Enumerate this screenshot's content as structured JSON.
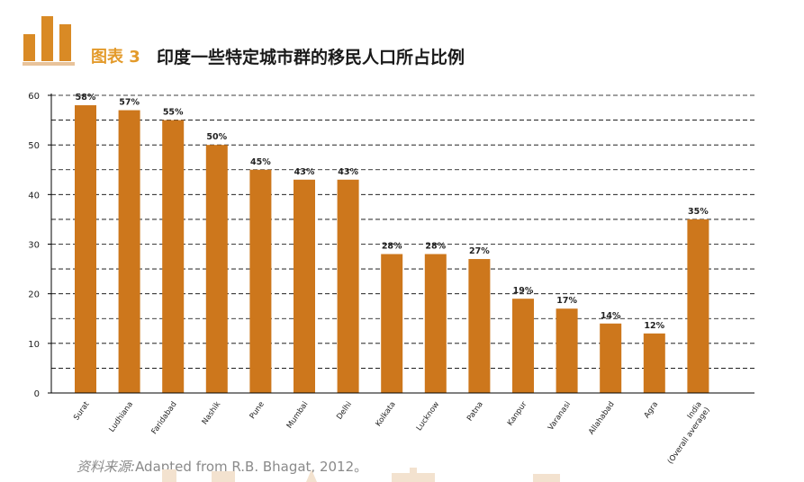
{
  "header": {
    "figure_label": "图表 3",
    "title": "印度一些特定城市群的移民人口所占比例"
  },
  "source": {
    "prefix": "资料来源:",
    "text": "Adapted from R.B. Bhagat, 2012。"
  },
  "colors": {
    "bar": "#cd771c",
    "accent": "#e39a2a",
    "logo": "#d98a25"
  },
  "chart_data": {
    "type": "bar",
    "categories": [
      "Surat",
      "Ludhiana",
      "Faridabad",
      "Nashik",
      "Pune",
      "Mumbai",
      "Delhi",
      "Kolkata",
      "Lucknow",
      "Patna",
      "Kanpur",
      "Varanasi",
      "Allahabad",
      "Agra",
      "India (Overall average)"
    ],
    "category_lines": [
      [
        "Surat"
      ],
      [
        "Ludhiana"
      ],
      [
        "Faridabad"
      ],
      [
        "Nashik"
      ],
      [
        "Pune"
      ],
      [
        "Mumbai"
      ],
      [
        "Delhi"
      ],
      [
        "Kolkata"
      ],
      [
        "Lucknow"
      ],
      [
        "Patna"
      ],
      [
        "Kanpur"
      ],
      [
        "Varanasi"
      ],
      [
        "Allahabad"
      ],
      [
        "Agra"
      ],
      [
        "India",
        "(Overall average)"
      ]
    ],
    "values": [
      58,
      57,
      55,
      50,
      45,
      43,
      43,
      28,
      28,
      27,
      19,
      17,
      14,
      12,
      35
    ],
    "labels": [
      "58%",
      "57%",
      "55%",
      "50%",
      "45%",
      "43%",
      "43%",
      "28%",
      "28%",
      "27%",
      "19%",
      "17%",
      "14%",
      "12%",
      "35%"
    ],
    "yticks": [
      0,
      10,
      20,
      30,
      40,
      50,
      60
    ],
    "ylim": [
      0,
      60
    ],
    "title": "",
    "xlabel": "",
    "ylabel": "",
    "grid": true
  }
}
